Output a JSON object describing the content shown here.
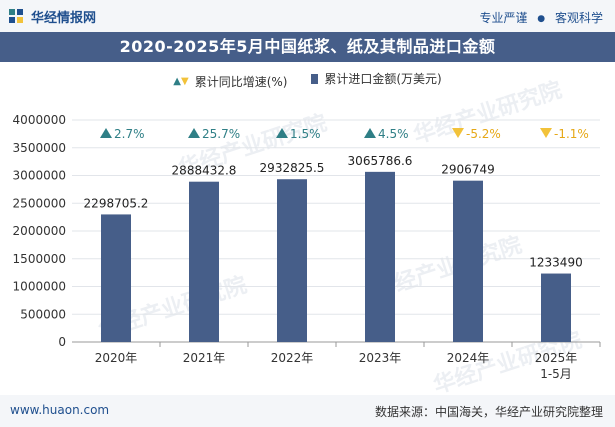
{
  "header": {
    "brand": "华经情报网",
    "tag_left": "专业严谨",
    "tag_right": "客观科学"
  },
  "title": "2020-2025年5月中国纸浆、纸及其制品进口金额",
  "legend": {
    "growth_label": "累计同比增速(%)",
    "amount_label": "累计进口金额(万美元)"
  },
  "watermarks": [
    "华经产业研究院",
    "huaon.com"
  ],
  "footer": {
    "url": "www.huaon.com",
    "source": "数据来源：中国海关，华经产业研究院整理"
  },
  "colors": {
    "bar": "#465e89",
    "up_marker": "#2f7f86",
    "down_marker": "#f2c23a",
    "growth_positive_text": "#2f7f86",
    "growth_negative_text": "#e6a817",
    "title_bg": "#465e89"
  },
  "chart_data": {
    "type": "bar",
    "categories": [
      "2020年",
      "2021年",
      "2022年",
      "2023年",
      "2024年",
      "2025年\n1-5月"
    ],
    "ylim": [
      0,
      4000000
    ],
    "yticks": [
      0,
      500000,
      1000000,
      1500000,
      2000000,
      2500000,
      3000000,
      3500000,
      4000000
    ],
    "grid": true,
    "series": [
      {
        "name": "累计进口金额(万美元)",
        "values": [
          2298705.2,
          2888432.8,
          2932825.5,
          3065786.6,
          2906749,
          1233490
        ],
        "value_labels": [
          "2298705.2",
          "2888432.8",
          "2932825.5",
          "3065786.6",
          "2906749",
          "1233490"
        ]
      },
      {
        "name": "累计同比增速(%)",
        "values": [
          2.7,
          25.7,
          1.5,
          4.5,
          -5.2,
          -1.1
        ],
        "labels": [
          "2.7%",
          "25.7%",
          "1.5%",
          "4.5%",
          "-5.2%",
          "-1.1%"
        ]
      }
    ]
  }
}
